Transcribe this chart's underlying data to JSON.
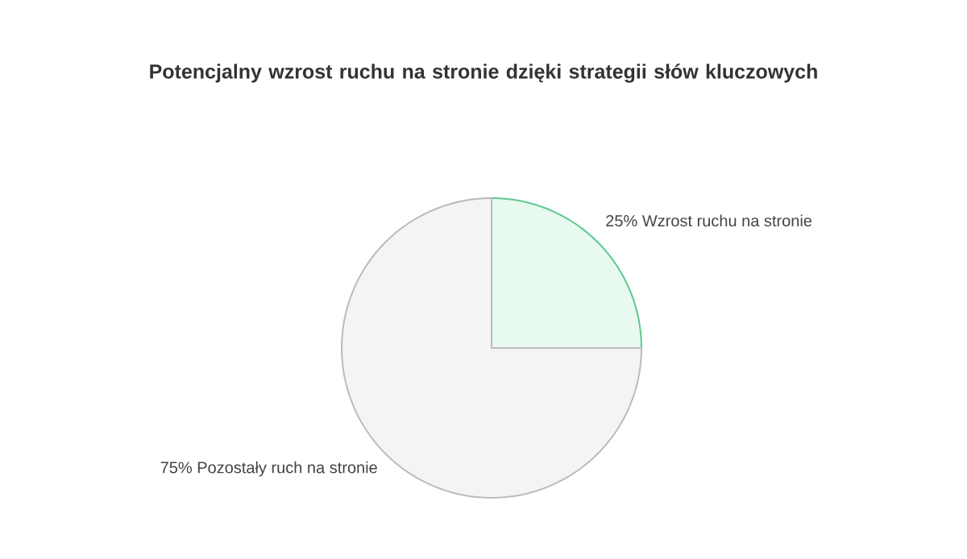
{
  "chart_data": {
    "type": "pie",
    "title": "Potencjalny wzrost ruchu na stronie dzięki strategii słów kluczowych",
    "categories": [
      "Wzrost ruchu na stronie",
      "Pozostały ruch na stronie"
    ],
    "values": [
      25,
      75
    ],
    "value_labels": [
      "25%",
      "75%"
    ],
    "colors": [
      "#e8f9ef",
      "#f4f4f4"
    ]
  }
}
